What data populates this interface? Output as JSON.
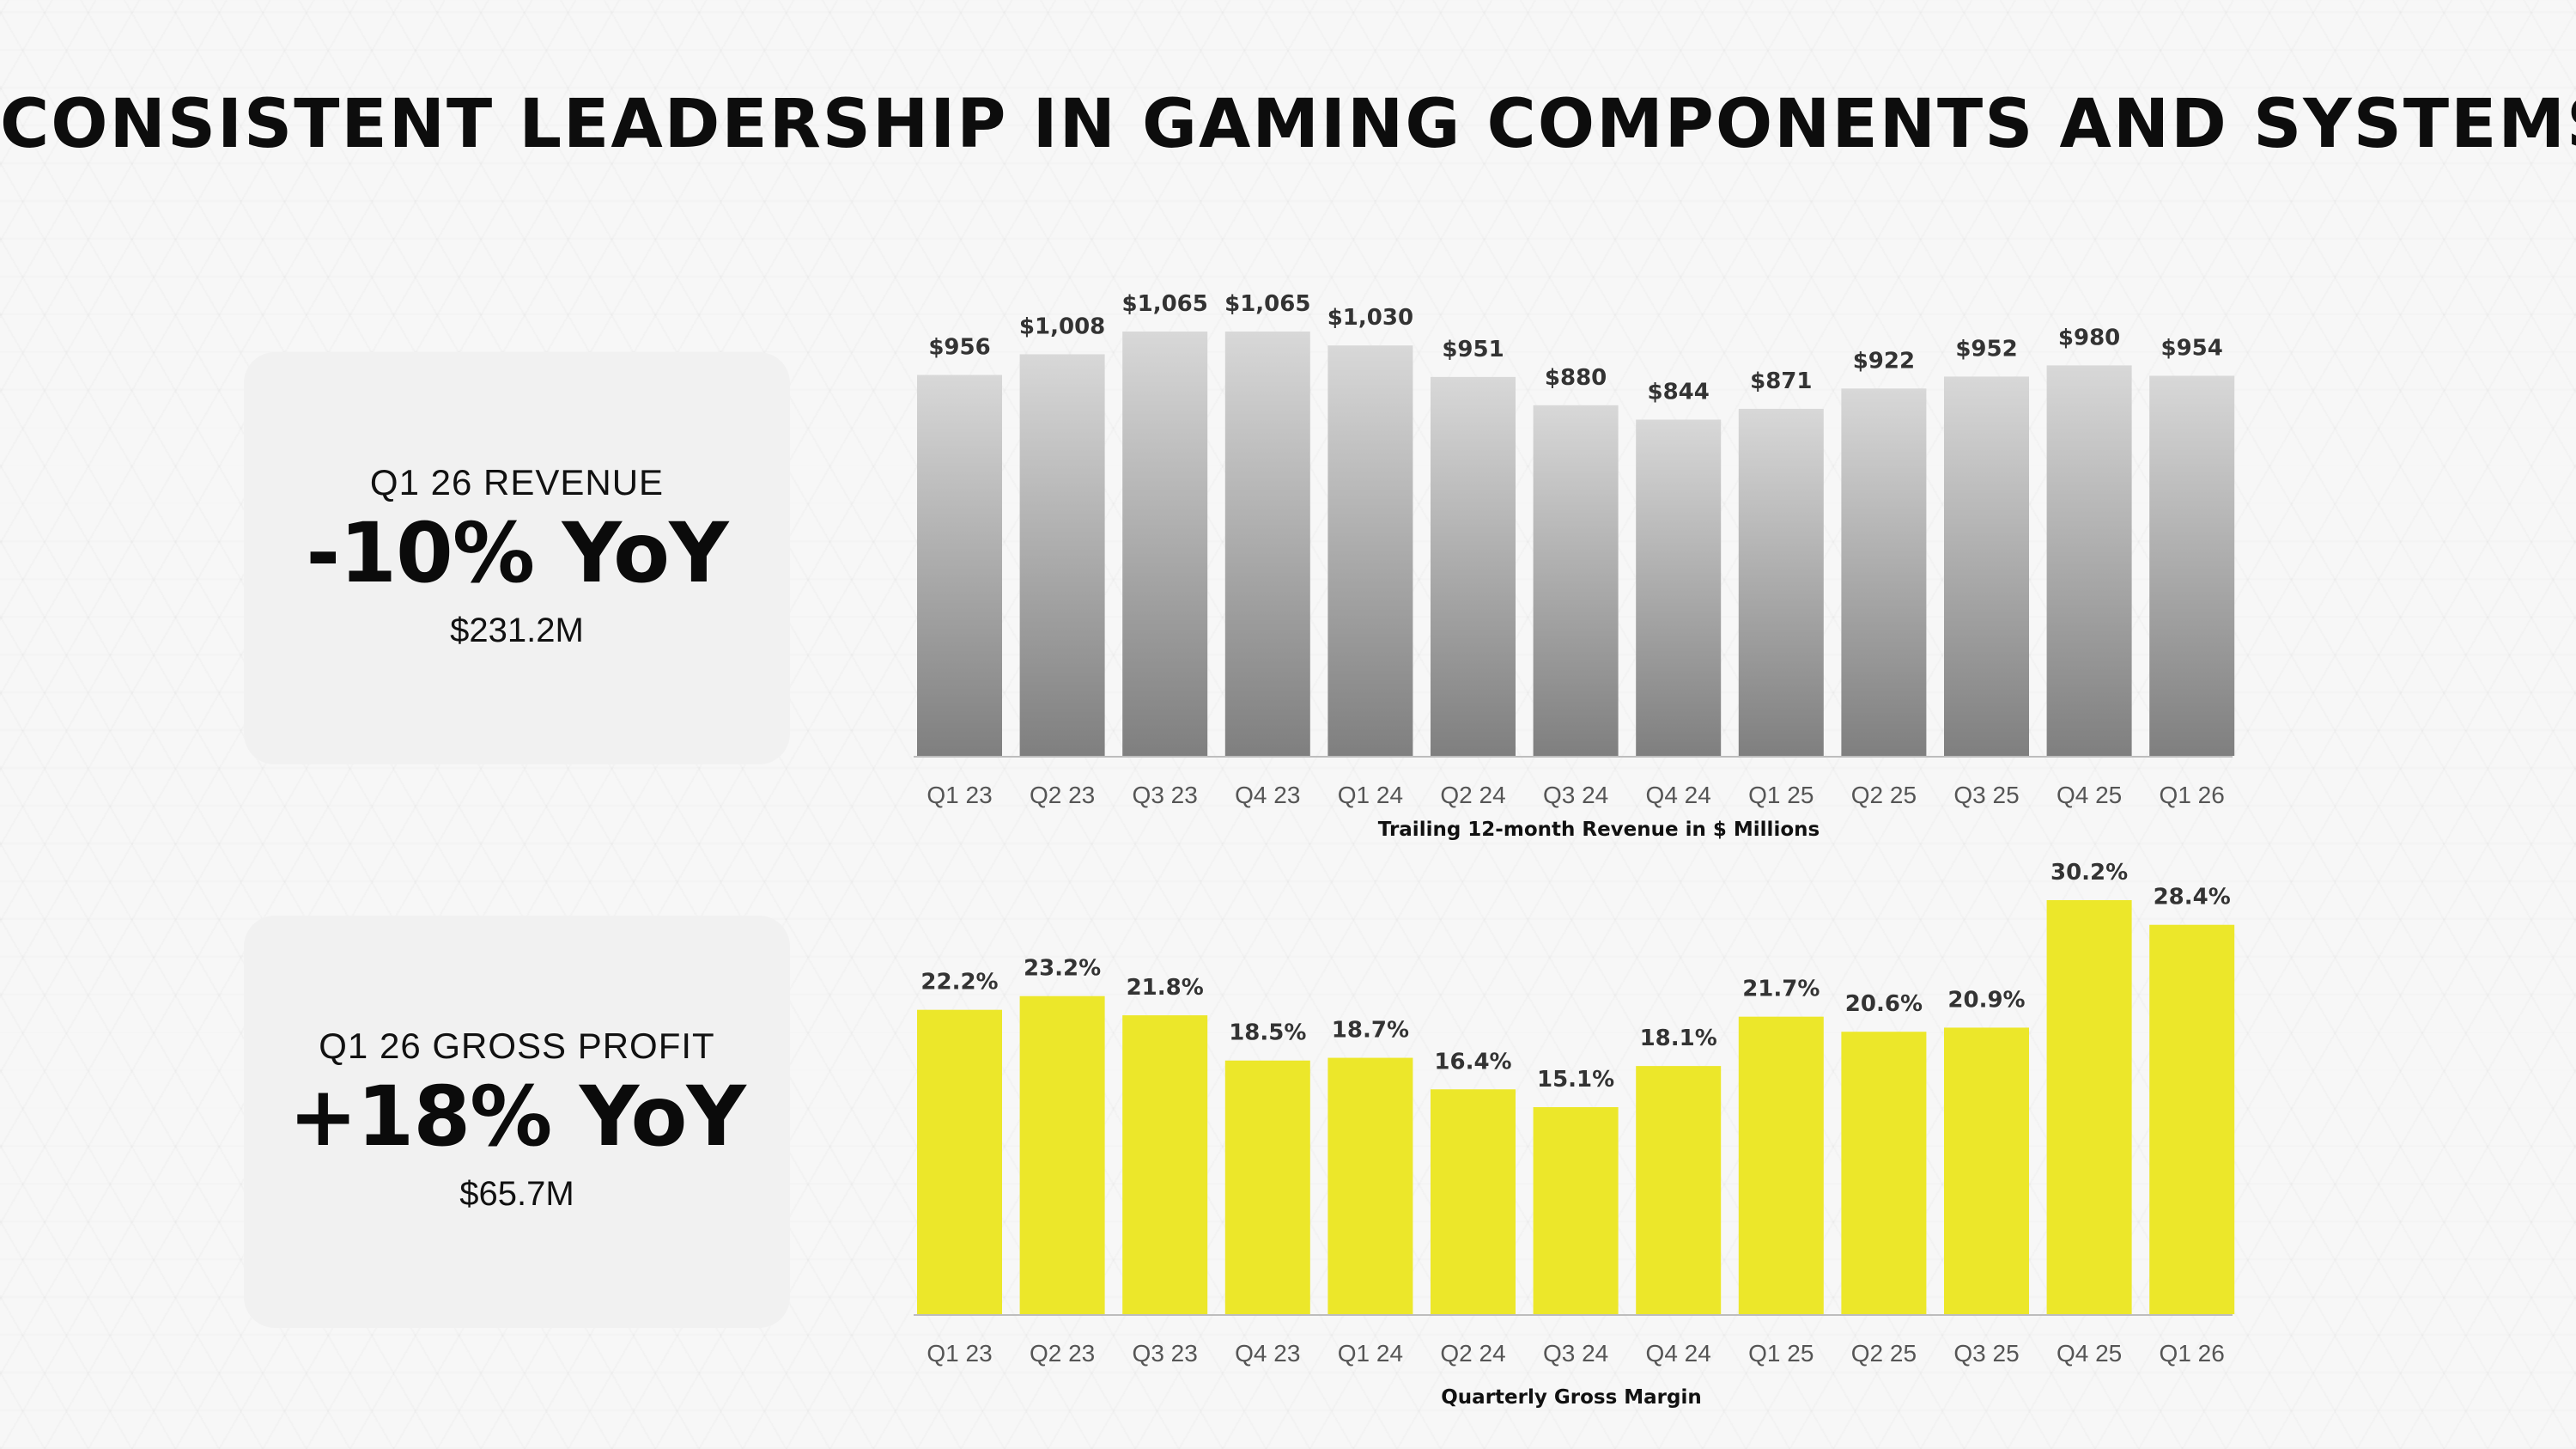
{
  "title": "CONSISTENT LEADERSHIP IN GAMING COMPONENTS AND SYSTEMS",
  "kpis": {
    "revenue": {
      "label": "Q1 26 REVENUE",
      "value": "-10% YoY",
      "amount": "$231.2M"
    },
    "gross_profit": {
      "label": "Q1 26 GROSS PROFIT",
      "value": "+18% YoY",
      "amount": "$65.7M"
    }
  },
  "colors": {
    "revenue_bar_top": "#d8d8d8",
    "revenue_bar_bottom": "#7f7f7f",
    "margin_bar": "#ece72a",
    "kpi_card_bg": "#f1f1f1"
  },
  "chart_data": [
    {
      "type": "bar",
      "title": "",
      "xlabel": "Trailing 12-month Revenue in $ Millions",
      "ylabel": "",
      "categories": [
        "Q1 23",
        "Q2 23",
        "Q3 23",
        "Q4 23",
        "Q1 24",
        "Q2 24",
        "Q3 24",
        "Q4 24",
        "Q1 25",
        "Q2 25",
        "Q3 25",
        "Q4 25",
        "Q1 26"
      ],
      "values": [
        956,
        1008,
        1065,
        1065,
        1030,
        951,
        880,
        844,
        871,
        922,
        952,
        980,
        954
      ],
      "data_labels": [
        "$956",
        "$1,008",
        "$1,065",
        "$1,065",
        "$1,030",
        "$951",
        "$880",
        "$844",
        "$871",
        "$922",
        "$952",
        "$980",
        "$954"
      ],
      "ylim": [
        0,
        1065
      ],
      "grid": false,
      "legend": "none"
    },
    {
      "type": "bar",
      "title": "",
      "xlabel": "Quarterly Gross Margin",
      "ylabel": "",
      "categories": [
        "Q1 23",
        "Q2 23",
        "Q3 23",
        "Q4 23",
        "Q1 24",
        "Q2 24",
        "Q3 24",
        "Q4 24",
        "Q1 25",
        "Q2 25",
        "Q3 25",
        "Q4 25",
        "Q1 26"
      ],
      "values": [
        22.2,
        23.2,
        21.8,
        18.5,
        18.7,
        16.4,
        15.1,
        18.1,
        21.7,
        20.6,
        20.9,
        30.2,
        28.4
      ],
      "data_labels": [
        "22.2%",
        "23.2%",
        "21.8%",
        "18.5%",
        "18.7%",
        "16.4%",
        "15.1%",
        "18.1%",
        "21.7%",
        "20.6%",
        "20.9%",
        "30.2%",
        "28.4%"
      ],
      "ylim": [
        0,
        30.2
      ],
      "grid": false,
      "legend": "none"
    }
  ]
}
